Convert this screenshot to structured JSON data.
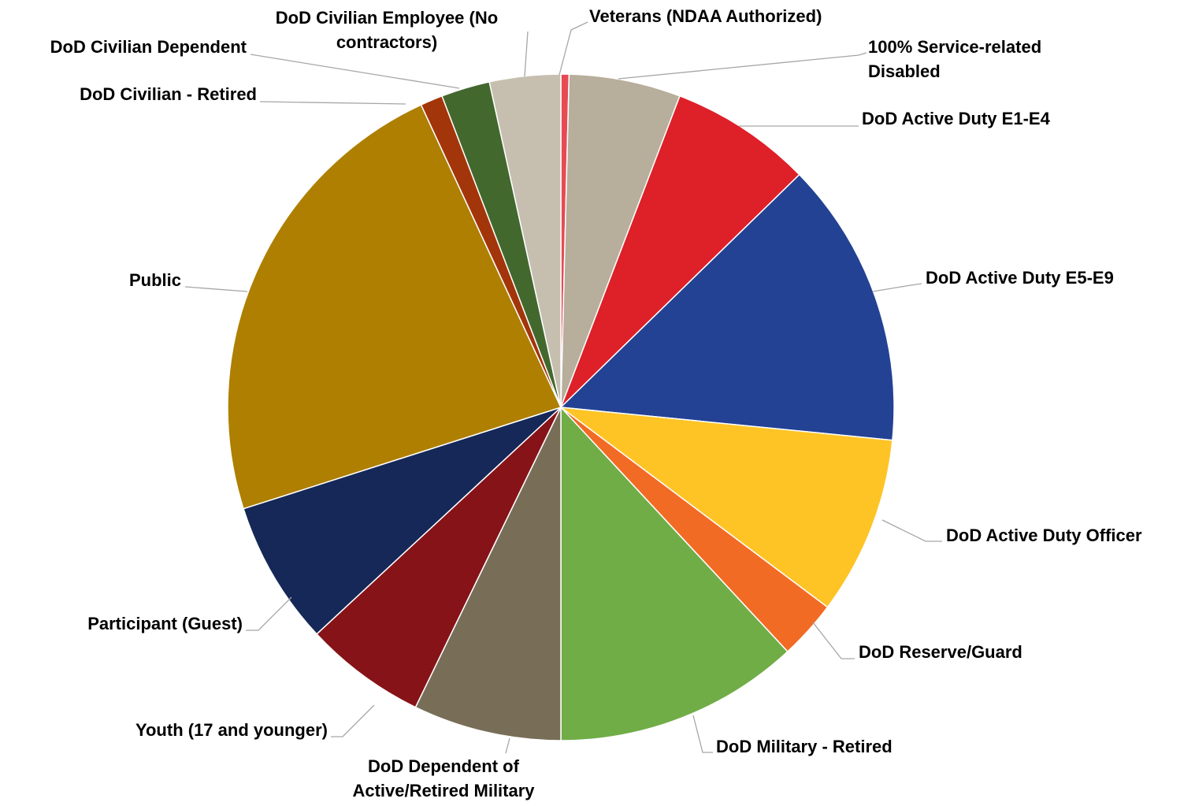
{
  "chart_data": {
    "type": "pie",
    "title": "",
    "start": "12 o'clock",
    "direction": "clockwise",
    "units": "percent",
    "slices": [
      {
        "label": "Veterans (NDAA Authorized)",
        "value": 0.4,
        "color": "#e64b54"
      },
      {
        "label": "100% Service-related Disabled",
        "value": 5.5,
        "color": "#b7ae9b"
      },
      {
        "label": "DoD Active Duty E1-E4",
        "value": 7.0,
        "color": "#de2029"
      },
      {
        "label": "DoD Active Duty E5-E9",
        "value": 14.1,
        "color": "#234293"
      },
      {
        "label": "DoD Active Duty Officer",
        "value": 8.8,
        "color": "#fec426"
      },
      {
        "label": "DoD Reserve/Guard",
        "value": 2.9,
        "color": "#f26b24"
      },
      {
        "label": "DoD Military - Retired",
        "value": 12.1,
        "color": "#70ad47"
      },
      {
        "label": "DoD Dependent of Active/Retired Military",
        "value": 7.3,
        "color": "#786e58"
      },
      {
        "label": "Youth (17 and younger)",
        "value": 6.0,
        "color": "#861318"
      },
      {
        "label": "Participant (Guest)",
        "value": 7.1,
        "color": "#152858"
      },
      {
        "label": "Public",
        "value": 23.4,
        "color": "#ae7f00"
      },
      {
        "label": "DoD Civilian - Retired",
        "value": 1.1,
        "color": "#a3350a"
      },
      {
        "label": "DoD Civilian Dependent",
        "value": 2.4,
        "color": "#43682e"
      },
      {
        "label": "DoD Civilian Employee (No contractors)",
        "value": 3.5,
        "color": "#c6bfb0"
      }
    ]
  },
  "labels": [
    {
      "lines": [
        "Veterans (NDAA Authorized)"
      ]
    },
    {
      "lines": [
        "100% Service-related",
        "Disabled"
      ]
    },
    {
      "lines": [
        "DoD Active Duty E1-E4"
      ]
    },
    {
      "lines": [
        "DoD Active Duty E5-E9"
      ]
    },
    {
      "lines": [
        "DoD Active Duty Officer"
      ]
    },
    {
      "lines": [
        "DoD Reserve/Guard"
      ]
    },
    {
      "lines": [
        "DoD Military - Retired"
      ]
    },
    {
      "lines": [
        "DoD Dependent of",
        "Active/Retired Military"
      ]
    },
    {
      "lines": [
        "Youth (17 and younger)"
      ]
    },
    {
      "lines": [
        "Participant (Guest)"
      ]
    },
    {
      "lines": [
        "Public"
      ]
    },
    {
      "lines": [
        "DoD Civilian - Retired"
      ]
    },
    {
      "lines": [
        "DoD Civilian Dependent"
      ]
    },
    {
      "lines": [
        "DoD Civilian Employee (No",
        "contractors)"
      ]
    }
  ]
}
